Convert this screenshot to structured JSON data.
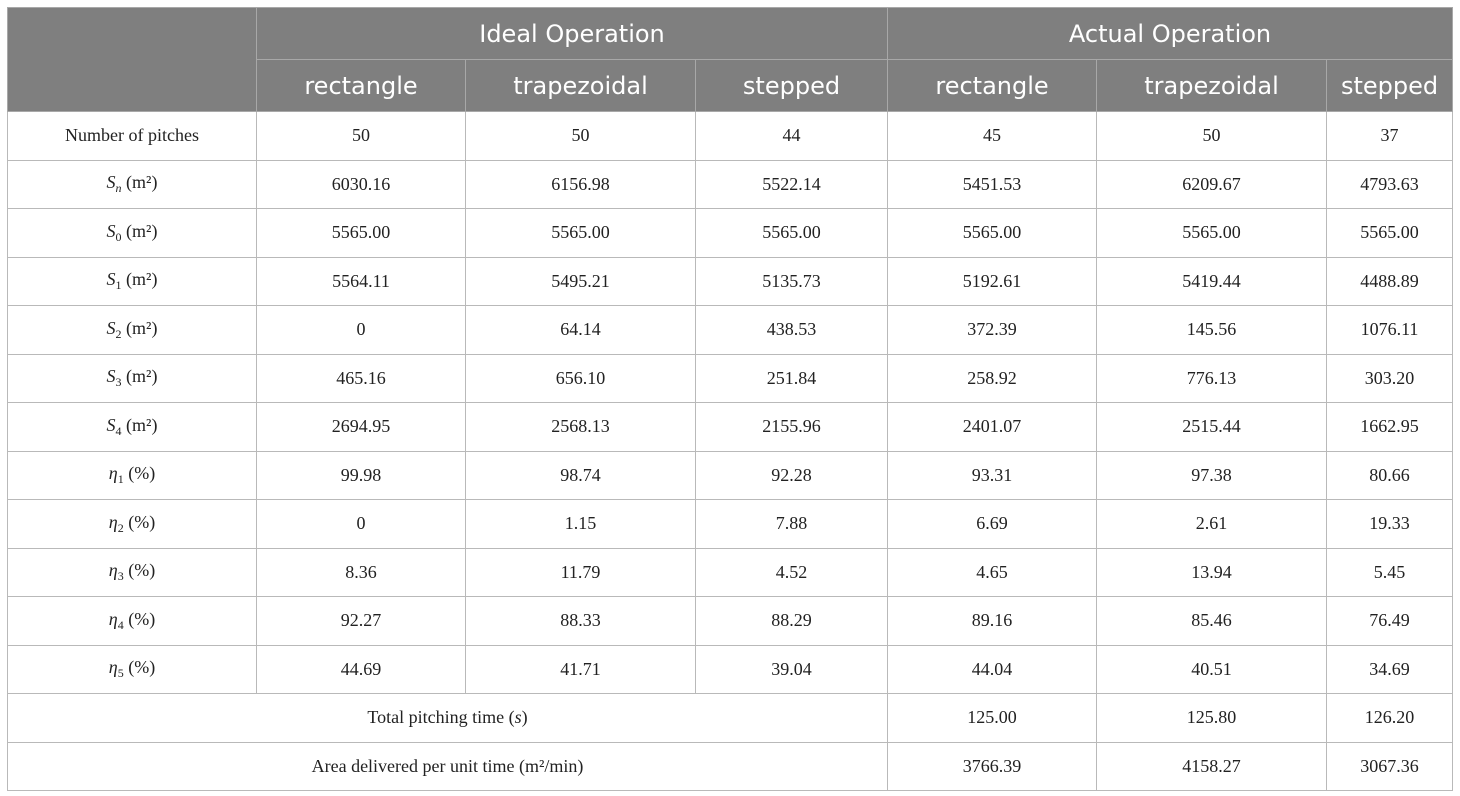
{
  "header": {
    "group_ideal": "Ideal Operation",
    "group_actual": "Actual Operation",
    "columns": [
      "rectangle",
      "trapezoidal",
      "stepped",
      "rectangle",
      "trapezoidal",
      "stepped"
    ]
  },
  "rows": [
    {
      "label": "Number of pitches",
      "values": [
        "50",
        "50",
        "44",
        "45",
        "50",
        "37"
      ]
    },
    {
      "sym": "S",
      "sub": "n",
      "unit": "(m²)",
      "values": [
        "6030.16",
        "6156.98",
        "5522.14",
        "5451.53",
        "6209.67",
        "4793.63"
      ]
    },
    {
      "sym": "S",
      "sub": "0",
      "unit": "(m²)",
      "values": [
        "5565.00",
        "5565.00",
        "5565.00",
        "5565.00",
        "5565.00",
        "5565.00"
      ]
    },
    {
      "sym": "S",
      "sub": "1",
      "unit": "(m²)",
      "values": [
        "5564.11",
        "5495.21",
        "5135.73",
        "5192.61",
        "5419.44",
        "4488.89"
      ]
    },
    {
      "sym": "S",
      "sub": "2",
      "unit": "(m²)",
      "values": [
        "0",
        "64.14",
        "438.53",
        "372.39",
        "145.56",
        "1076.11"
      ]
    },
    {
      "sym": "S",
      "sub": "3",
      "unit": "(m²)",
      "values": [
        "465.16",
        "656.10",
        "251.84",
        "258.92",
        "776.13",
        "303.20"
      ]
    },
    {
      "sym": "S",
      "sub": "4",
      "unit": "(m²)",
      "values": [
        "2694.95",
        "2568.13",
        "2155.96",
        "2401.07",
        "2515.44",
        "1662.95"
      ]
    },
    {
      "sym": "η",
      "sub": "1",
      "unit": "(%)",
      "values": [
        "99.98",
        "98.74",
        "92.28",
        "93.31",
        "97.38",
        "80.66"
      ]
    },
    {
      "sym": "η",
      "sub": "2",
      "unit": "(%)",
      "values": [
        "0",
        "1.15",
        "7.88",
        "6.69",
        "2.61",
        "19.33"
      ]
    },
    {
      "sym": "η",
      "sub": "3",
      "unit": "(%)",
      "values": [
        "8.36",
        "11.79",
        "4.52",
        "4.65",
        "13.94",
        "5.45"
      ]
    },
    {
      "sym": "η",
      "sub": "4",
      "unit": "(%)",
      "values": [
        "92.27",
        "88.33",
        "88.29",
        "89.16",
        "85.46",
        "76.49"
      ]
    },
    {
      "sym": "η",
      "sub": "5",
      "unit": "(%)",
      "values": [
        "44.69",
        "41.71",
        "39.04",
        "44.04",
        "40.51",
        "34.69"
      ]
    }
  ],
  "summary": [
    {
      "label_pre": "Total pitching time (",
      "label_var": "s",
      "label_post": ")",
      "values": [
        "125.00",
        "125.80",
        "126.20"
      ]
    },
    {
      "label_pre": "Area delivered per unit time (m²/min)",
      "label_var": "",
      "label_post": "",
      "values": [
        "3766.39",
        "4158.27",
        "3067.36"
      ]
    }
  ]
}
